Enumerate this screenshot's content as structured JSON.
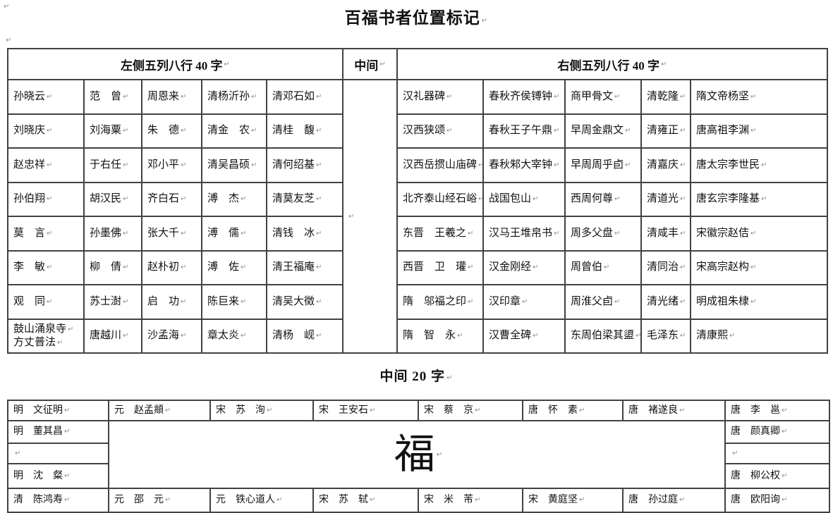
{
  "document": {
    "title": "百福书者位置标记",
    "middle_heading": "中间 20 字",
    "pilcrow": "↵"
  },
  "main_table": {
    "left_header": "左侧五列八行 40 字",
    "middle_header": "中间",
    "right_header": "右侧五列八行 40 字",
    "left_rows": [
      [
        "孙晓云",
        "范　曾",
        "周恩来",
        "清杨沂孙",
        "清邓石如"
      ],
      [
        "刘晓庆",
        "刘海粟",
        "朱　德",
        "清金　农",
        "清桂　馥"
      ],
      [
        "赵忠祥",
        "于右任",
        "邓小平",
        "清吴昌硕",
        "清何绍基"
      ],
      [
        "孙伯翔",
        "胡汉民",
        "齐白石",
        "溥　杰",
        "清莫友芝"
      ],
      [
        "莫　言",
        "孙墨佛",
        "张大千",
        "溥　儒",
        "清钱　冰"
      ],
      [
        "李　敏",
        "柳　倩",
        "赵朴初",
        "溥　佐",
        "清王福庵"
      ],
      [
        "观　同",
        "苏士澍",
        "启　功",
        "陈巨来",
        "清吴大徵"
      ],
      [
        "鼓山涌泉寺\n方丈普法",
        "唐越川",
        "沙孟海",
        "章太炎",
        "清杨　岘"
      ]
    ],
    "right_rows": [
      [
        "汉礼器碑",
        "春秋齐侯镈钟",
        "商甲骨文",
        "清乾隆",
        "隋文帝杨坚"
      ],
      [
        "汉西狭颂",
        "春秋王子午鼎",
        "早周金鼎文",
        "清雍正",
        "唐高祖李渊"
      ],
      [
        "汉西岳掼山庙碑",
        "春秋邾大宰钟",
        "早周周乎卣",
        "清嘉庆",
        "唐太宗李世民"
      ],
      [
        "北齐泰山经石峪",
        "战国包山",
        "西周何尊",
        "清道光",
        "唐玄宗李隆基"
      ],
      [
        "东晋　王羲之",
        "汉马王堆帛书",
        "周多父盘",
        "清咸丰",
        "宋徽宗赵佶"
      ],
      [
        "西晋　卫　瓘",
        "汉金刚经",
        "周曾伯",
        "清同治",
        "宋高宗赵构"
      ],
      [
        "隋　邬福之印",
        "汉印章",
        "周淮父卣",
        "清光绪",
        "明成祖朱棣"
      ],
      [
        "隋　智　永",
        "汉曹全碑",
        "东周伯梁其盨",
        "毛泽东",
        "清康熙"
      ]
    ]
  },
  "bottom_table": {
    "top_row": [
      "明　文征明",
      "元　赵孟頫",
      "宋　苏　洵",
      "宋　王安石",
      "宋　蔡　京",
      "唐　怀　素",
      "唐　褚遂良",
      "唐　李　邕"
    ],
    "left_column": [
      "明　董其昌",
      "",
      "明　沈　粲"
    ],
    "right_column": [
      "唐　颜真卿",
      "",
      "唐　柳公权"
    ],
    "center_char": "福",
    "bottom_row": [
      "清　陈鸿寿",
      "元　邵　元",
      "元　铁心道人",
      "宋　苏　轼",
      "宋　米　芾",
      "宋　黄庭坚",
      "唐　孙过庭",
      "唐　欧阳询"
    ]
  }
}
